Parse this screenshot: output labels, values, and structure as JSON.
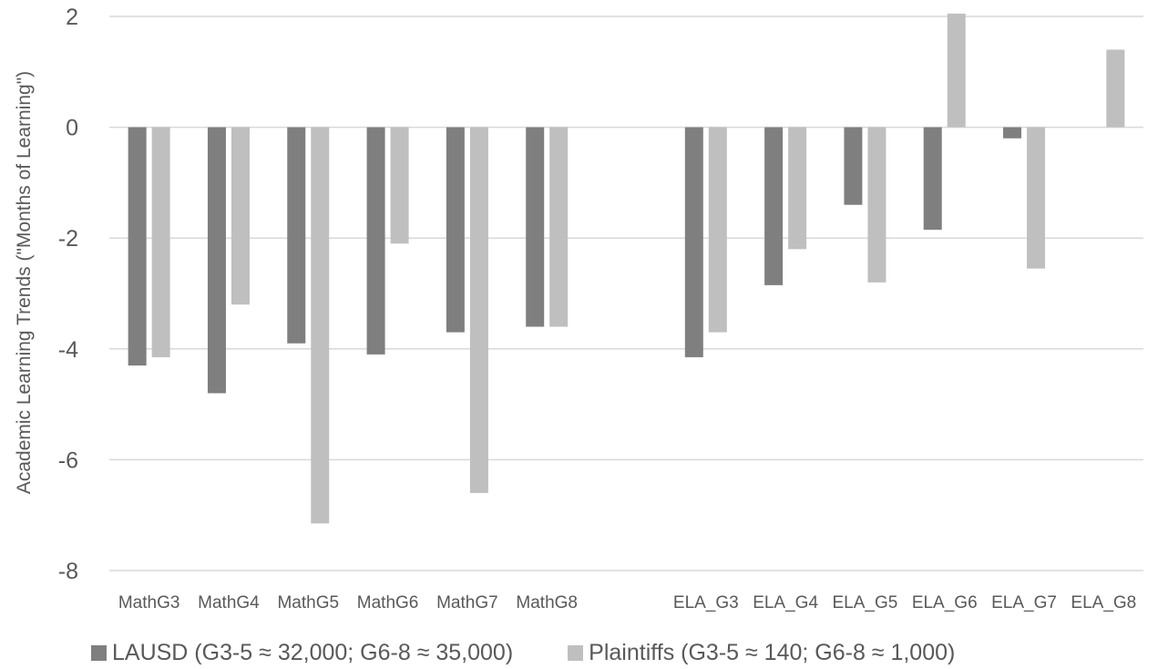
{
  "chart_data": {
    "type": "bar",
    "title": "",
    "xlabel": "",
    "ylabel": "Academic Learning Trends (\"Months of Learning\")",
    "ylim": [
      -8,
      2
    ],
    "yticks": [
      "2",
      "0",
      "-2",
      "-4",
      "-6",
      "-8"
    ],
    "ytick_values": [
      2,
      0,
      -2,
      -4,
      -6,
      -8
    ],
    "grid": true,
    "legend_position": "bottom",
    "categories": [
      "MathG3",
      "MathG4",
      "MathG5",
      "MathG6",
      "MathG7",
      "MathG8",
      "",
      "ELA_G3",
      "ELA_G4",
      "ELA_G5",
      "ELA_G6",
      "ELA_G7",
      "ELA_G8"
    ],
    "series": [
      {
        "name": "LAUSD (G3-5 ≈ 32,000; G6-8 ≈ 35,000)",
        "color": "#7f7f7f",
        "values": [
          -4.3,
          -4.8,
          -3.9,
          -4.1,
          -3.7,
          -3.6,
          null,
          -4.15,
          -2.85,
          -1.4,
          -1.85,
          -0.2,
          0
        ]
      },
      {
        "name": "Plaintiffs  (G3-5 ≈ 140; G6-8 ≈ 1,000)",
        "color": "#bfbfbf",
        "values": [
          -4.15,
          -3.2,
          -7.15,
          -2.1,
          -6.6,
          -3.6,
          null,
          -3.7,
          -2.2,
          -2.8,
          2.05,
          -2.55,
          1.4
        ]
      }
    ]
  }
}
